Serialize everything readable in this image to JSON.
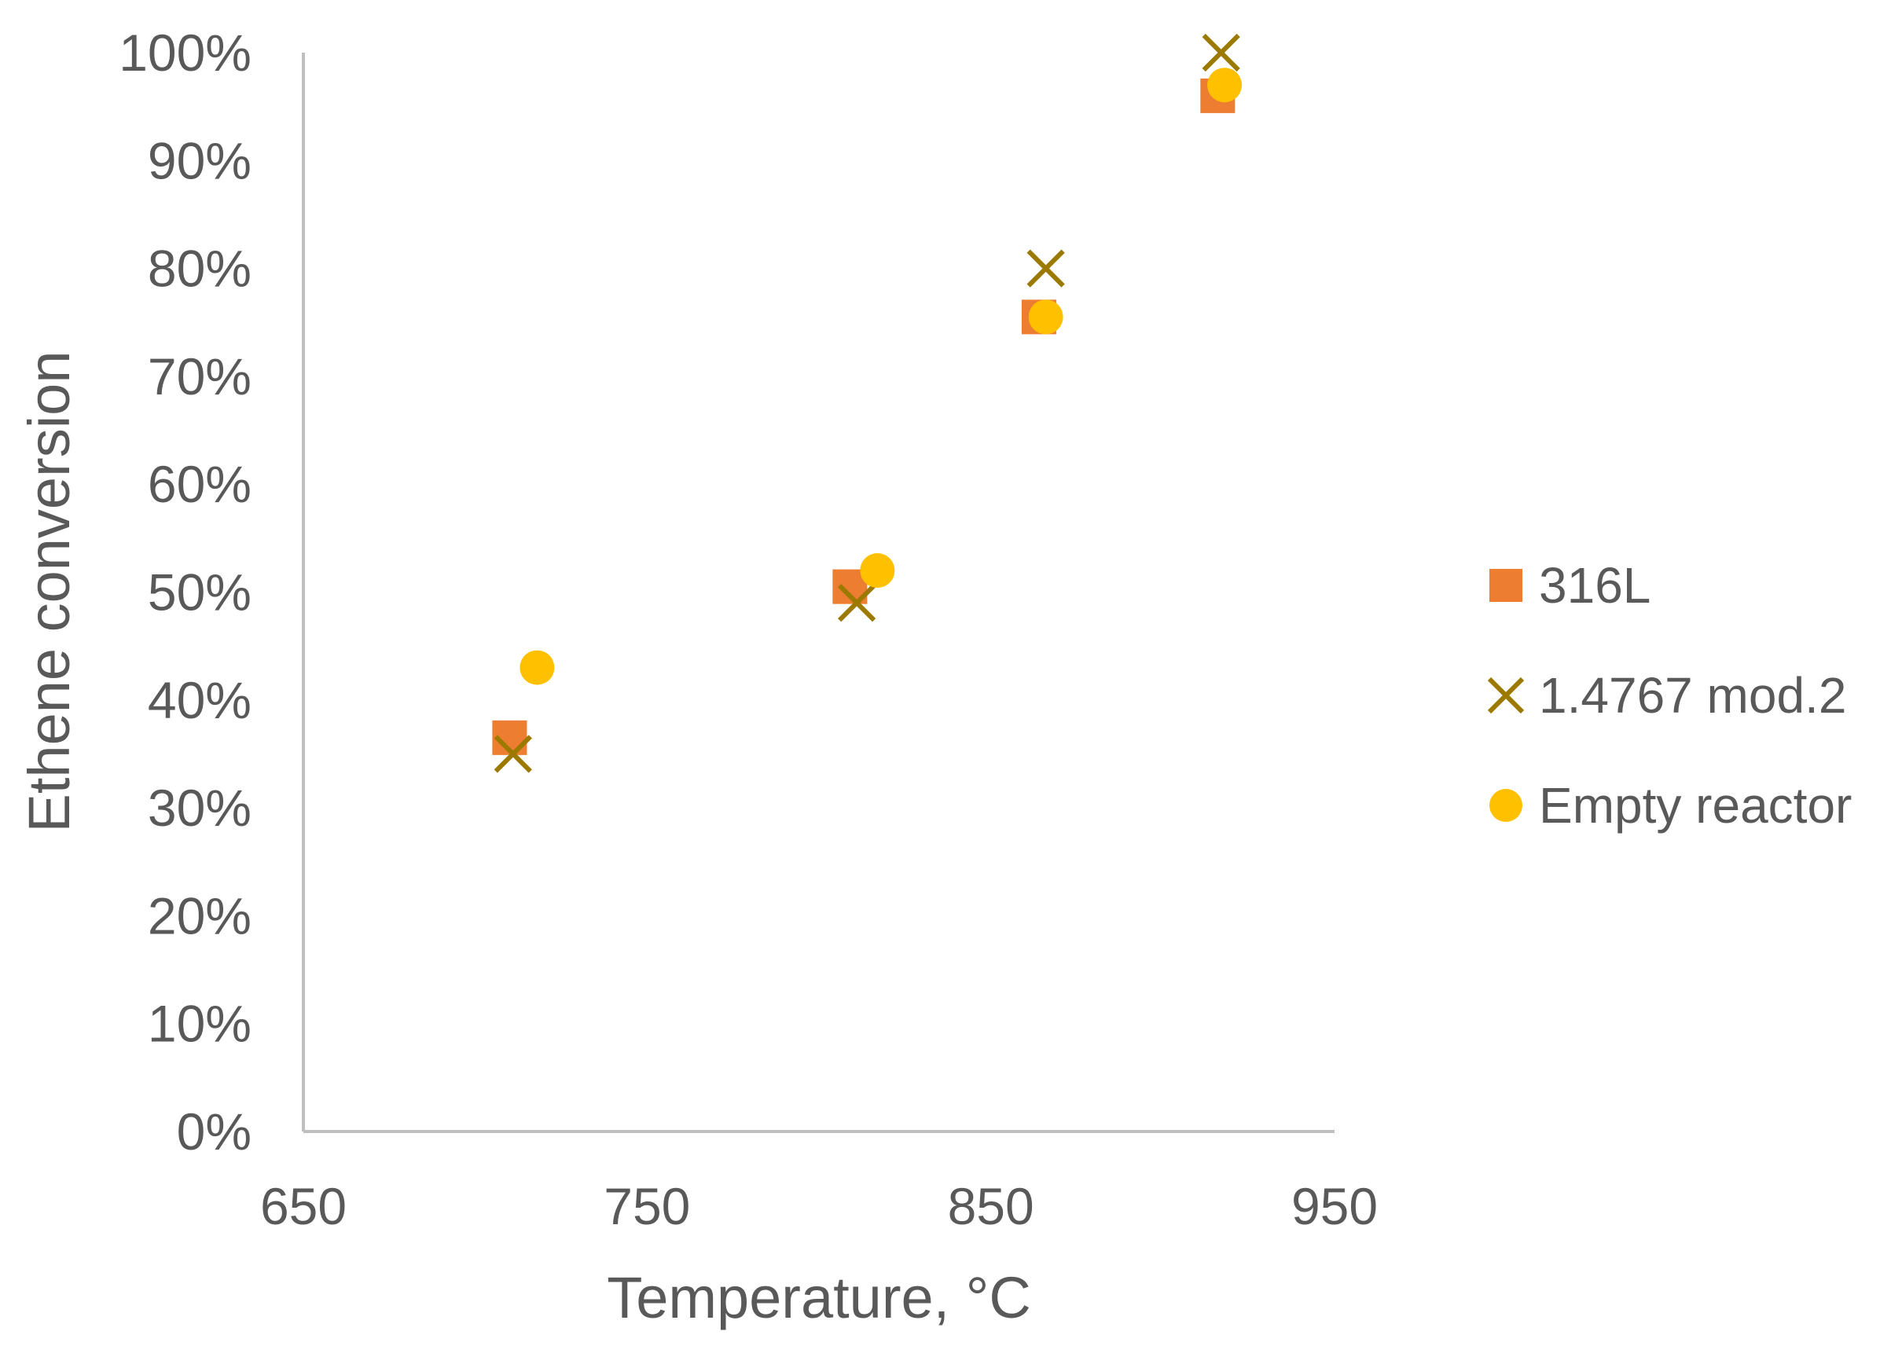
{
  "chart_data": {
    "type": "scatter",
    "xlabel": "Temperature, °C",
    "ylabel": "Ethene conversion",
    "xlim": [
      650,
      950
    ],
    "ylim": [
      0,
      100
    ],
    "x_ticks": [
      "650",
      "750",
      "850",
      "950"
    ],
    "y_ticks": [
      "0%",
      "10%",
      "20%",
      "30%",
      "40%",
      "50%",
      "60%",
      "70%",
      "80%",
      "90%",
      "100%"
    ],
    "grid": false,
    "legend_position": "right",
    "series": [
      {
        "name": "316L",
        "marker": "square",
        "color": "#ed7d31",
        "points": [
          {
            "x": 710,
            "y": 36.5
          },
          {
            "x": 809,
            "y": 50.5
          },
          {
            "x": 864,
            "y": 75.5
          },
          {
            "x": 916,
            "y": 96
          }
        ]
      },
      {
        "name": "1.4767 mod.2",
        "marker": "x",
        "color": "#9c7a00",
        "points": [
          {
            "x": 711,
            "y": 35
          },
          {
            "x": 811,
            "y": 49
          },
          {
            "x": 866,
            "y": 80
          },
          {
            "x": 917,
            "y": 100
          }
        ]
      },
      {
        "name": "Empty reactor",
        "marker": "circle",
        "color": "#ffc000",
        "points": [
          {
            "x": 718,
            "y": 43
          },
          {
            "x": 817,
            "y": 52
          },
          {
            "x": 866,
            "y": 75.5
          },
          {
            "x": 918,
            "y": 97
          }
        ]
      }
    ]
  }
}
